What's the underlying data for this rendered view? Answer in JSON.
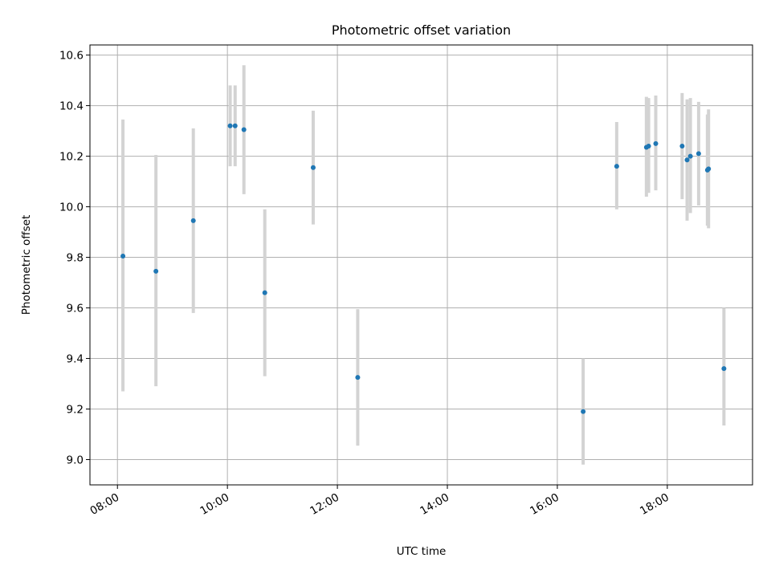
{
  "chart_data": {
    "type": "scatter",
    "title": "Photometric offset variation",
    "xlabel": "UTC time",
    "ylabel": "Photometric offset",
    "x_unit": "hours",
    "xlim": [
      7.5,
      19.55
    ],
    "ylim": [
      8.9,
      10.64
    ],
    "x_ticks": [
      {
        "value": 8,
        "label": "08:00"
      },
      {
        "value": 10,
        "label": "10:00"
      },
      {
        "value": 12,
        "label": "12:00"
      },
      {
        "value": 14,
        "label": "14:00"
      },
      {
        "value": 16,
        "label": "16:00"
      },
      {
        "value": 18,
        "label": "18:00"
      }
    ],
    "y_ticks": [
      {
        "value": 9.0,
        "label": "9.0"
      },
      {
        "value": 9.2,
        "label": "9.2"
      },
      {
        "value": 9.4,
        "label": "9.4"
      },
      {
        "value": 9.6,
        "label": "9.6"
      },
      {
        "value": 9.8,
        "label": "9.8"
      },
      {
        "value": 10.0,
        "label": "10.0"
      },
      {
        "value": 10.2,
        "label": "10.2"
      },
      {
        "value": 10.4,
        "label": "10.4"
      },
      {
        "value": 10.6,
        "label": "10.6"
      }
    ],
    "grid": true,
    "colors": {
      "point": "#1f77b4",
      "errorbar": "#d3d3d3",
      "grid": "#b0b0b0"
    },
    "points": [
      {
        "time": "08:06",
        "x": 8.1,
        "y": 9.805,
        "y_low": 9.27,
        "y_high": 10.345
      },
      {
        "time": "08:42",
        "x": 8.7,
        "y": 9.745,
        "y_low": 9.29,
        "y_high": 10.205
      },
      {
        "time": "09:23",
        "x": 9.38,
        "y": 9.945,
        "y_low": 9.58,
        "y_high": 10.31
      },
      {
        "time": "10:03",
        "x": 10.05,
        "y": 10.32,
        "y_low": 10.16,
        "y_high": 10.48
      },
      {
        "time": "10:08",
        "x": 10.14,
        "y": 10.32,
        "y_low": 10.16,
        "y_high": 10.48
      },
      {
        "time": "10:18",
        "x": 10.3,
        "y": 10.305,
        "y_low": 10.05,
        "y_high": 10.56
      },
      {
        "time": "10:41",
        "x": 10.68,
        "y": 9.66,
        "y_low": 9.33,
        "y_high": 9.99
      },
      {
        "time": "11:33",
        "x": 11.56,
        "y": 10.155,
        "y_low": 9.93,
        "y_high": 10.38
      },
      {
        "time": "12:22",
        "x": 12.37,
        "y": 9.325,
        "y_low": 9.055,
        "y_high": 9.595
      },
      {
        "time": "16:28",
        "x": 16.47,
        "y": 9.19,
        "y_low": 8.98,
        "y_high": 9.4
      },
      {
        "time": "17:05",
        "x": 17.08,
        "y": 10.16,
        "y_low": 9.99,
        "y_high": 10.335
      },
      {
        "time": "17:37",
        "x": 17.62,
        "y": 10.235,
        "y_low": 10.04,
        "y_high": 10.435
      },
      {
        "time": "17:40",
        "x": 17.66,
        "y": 10.24,
        "y_low": 10.055,
        "y_high": 10.43
      },
      {
        "time": "17:47",
        "x": 17.79,
        "y": 10.25,
        "y_low": 10.065,
        "y_high": 10.44
      },
      {
        "time": "18:16",
        "x": 18.27,
        "y": 10.24,
        "y_low": 10.03,
        "y_high": 10.45
      },
      {
        "time": "18:21",
        "x": 18.36,
        "y": 10.185,
        "y_low": 9.945,
        "y_high": 10.425
      },
      {
        "time": "18:25",
        "x": 18.42,
        "y": 10.2,
        "y_low": 9.975,
        "y_high": 10.43
      },
      {
        "time": "18:34",
        "x": 18.57,
        "y": 10.21,
        "y_low": 10.005,
        "y_high": 10.415
      },
      {
        "time": "18:44",
        "x": 18.73,
        "y": 10.145,
        "y_low": 9.925,
        "y_high": 10.365
      },
      {
        "time": "18:45",
        "x": 18.75,
        "y": 10.15,
        "y_low": 9.915,
        "y_high": 10.385
      },
      {
        "time": "19:02",
        "x": 19.03,
        "y": 9.36,
        "y_low": 9.135,
        "y_high": 9.6
      }
    ]
  }
}
